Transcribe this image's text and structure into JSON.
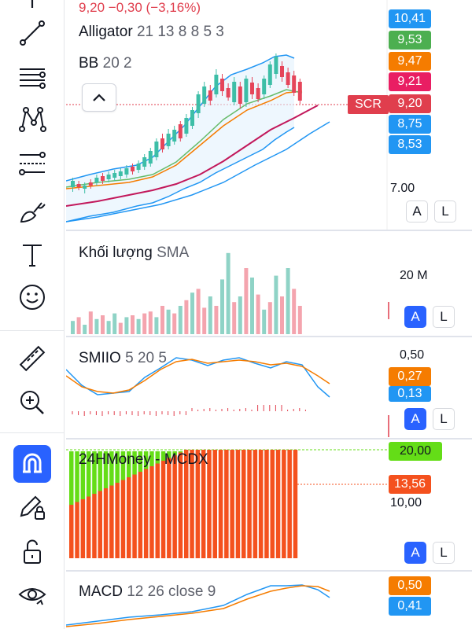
{
  "toolbar": {
    "items": [
      {
        "name": "line-tool-icon"
      },
      {
        "name": "parallel-lines-tool-icon"
      },
      {
        "name": "pattern-tool-icon"
      },
      {
        "name": "fib-tool-icon"
      },
      {
        "name": "brush-tool-icon"
      },
      {
        "name": "text-tool-icon"
      },
      {
        "name": "emoji-tool-icon"
      },
      {
        "name": "ruler-tool-icon"
      },
      {
        "name": "zoom-in-tool-icon"
      },
      {
        "name": "magnet-tool-icon"
      },
      {
        "name": "lock-drawing-tool-icon"
      },
      {
        "name": "unlock-tool-icon"
      },
      {
        "name": "eye-tool-icon"
      }
    ]
  },
  "price_pane": {
    "ohlc_text": "9,20  −0,30 (−3,16%)",
    "indicators": [
      {
        "name": "Alligator",
        "params": "21 13 8 8 5 3"
      },
      {
        "name": "BB",
        "params": "20 2"
      }
    ],
    "axis_label": "7.00",
    "symbol_tag": "SCR",
    "price_tags": [
      {
        "value": "10,41",
        "color": "#2196f3"
      },
      {
        "value": "9,53",
        "color": "#4caf50"
      },
      {
        "value": "9,47",
        "color": "#f57c00"
      },
      {
        "value": "9,21",
        "color": "#e91e63"
      },
      {
        "value": "9,20",
        "color": "#e03e4d"
      },
      {
        "value": "8,75",
        "color": "#2196f3"
      },
      {
        "value": "8,53",
        "color": "#2196f3"
      }
    ],
    "btn_a": "A",
    "btn_l": "L"
  },
  "volume_pane": {
    "title": "Khối lượng",
    "sub": "SMA",
    "axis_label": "20 M",
    "btn_a": "A",
    "btn_l": "L"
  },
  "smiio_pane": {
    "title": "SMIIO",
    "params": "5 20 5",
    "axis_label": "0,50",
    "tags": [
      {
        "value": "0,27",
        "color": "#f57c00"
      },
      {
        "value": "0,13",
        "color": "#2196f3"
      }
    ],
    "btn_a": "A",
    "btn_l": "L"
  },
  "mcdx_pane": {
    "title": "24HMoney - MCDX",
    "axis_label": "10,00",
    "tags": [
      {
        "value": "20,00",
        "color": "#64dd17",
        "text_color": "#131722"
      },
      {
        "value": "13,56",
        "color": "#f4511e",
        "text_color": "#ffffff"
      }
    ],
    "btn_a": "A",
    "btn_l": "L"
  },
  "macd_pane": {
    "title": "MACD",
    "params": "12 26 close 9",
    "tags": [
      {
        "value": "0,50",
        "color": "#f57c00"
      },
      {
        "value": "0,41",
        "color": "#2196f3"
      }
    ]
  },
  "colors": {
    "up": "#3dbea7",
    "down": "#e5455a",
    "vol_up": "#8fd3c6",
    "vol_down": "#f4a4ae",
    "bb_band": "#2196f3",
    "bb_basis": "#f57c00",
    "alligator_jaw": "#2196f3",
    "alligator_teeth": "#c2185b",
    "alligator_lips": "#66bb6a",
    "mcdx_green": "#64dd17",
    "mcdx_orange": "#f4511e"
  }
}
